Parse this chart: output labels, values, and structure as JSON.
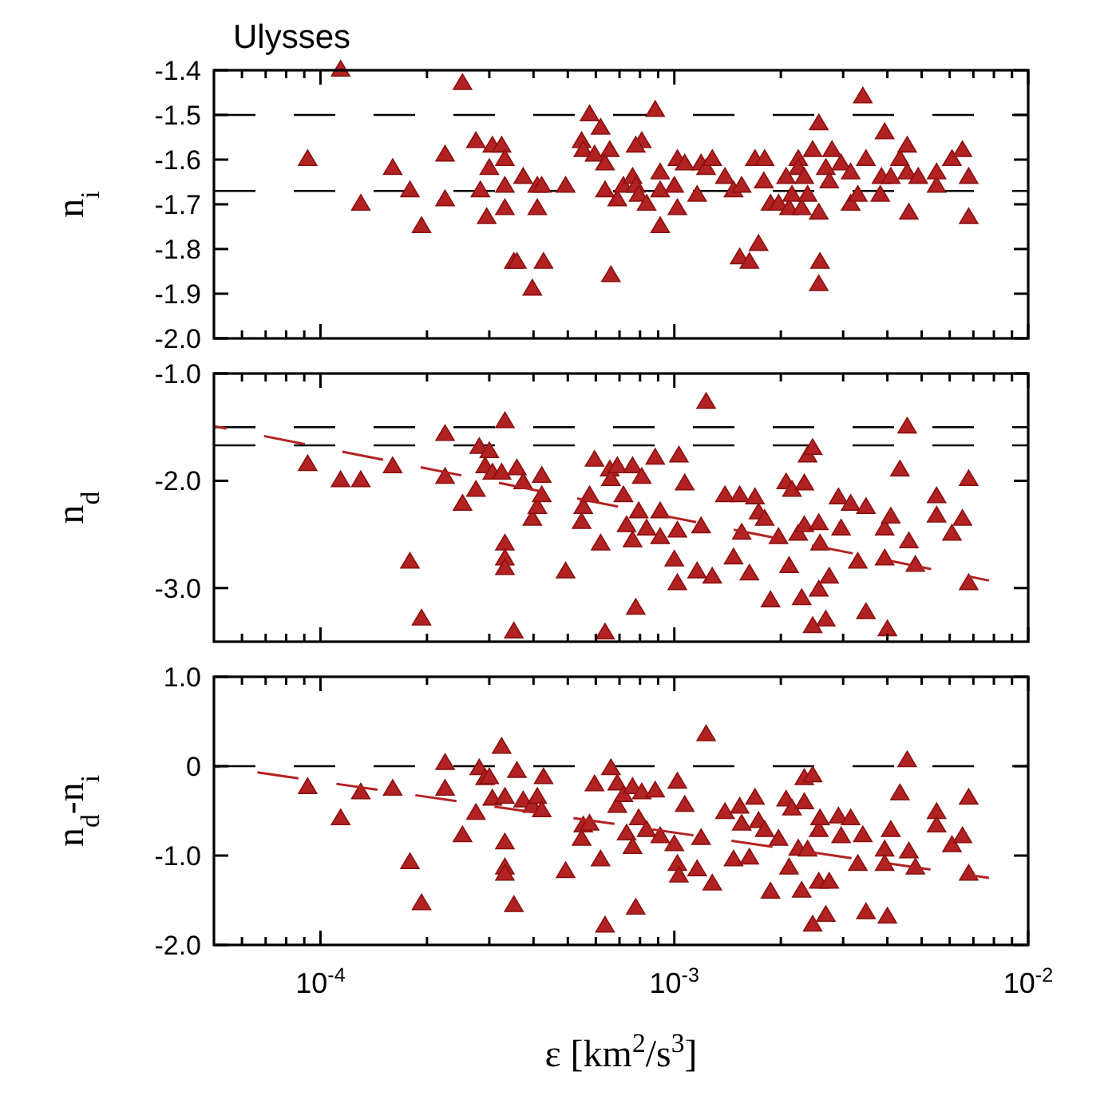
{
  "chart_data": [
    {
      "type": "scatter",
      "title": "Ulysses",
      "ylabel": "n$_{i}$",
      "log": "x",
      "tick_labels": "y",
      "xlim": [
        5e-05,
        0.01
      ],
      "xticks": [
        {
          "value": 6e-05,
          "label": null
        },
        {
          "value": 7e-05,
          "label": null
        },
        {
          "value": 8e-05,
          "label": null
        },
        {
          "value": 9e-05,
          "label": null
        },
        {
          "value": 0.0001,
          "label": null
        },
        {
          "value": 0.0002,
          "label": null
        },
        {
          "value": 0.0003,
          "label": null
        },
        {
          "value": 0.0004,
          "label": null
        },
        {
          "value": 0.0005,
          "label": null
        },
        {
          "value": 0.0006,
          "label": null
        },
        {
          "value": 0.0007,
          "label": null
        },
        {
          "value": 0.0008,
          "label": null
        },
        {
          "value": 0.0009,
          "label": null
        },
        {
          "value": 0.001,
          "label": null
        },
        {
          "value": 0.002,
          "label": null
        },
        {
          "value": 0.003,
          "label": null
        },
        {
          "value": 0.004,
          "label": null
        },
        {
          "value": 0.005,
          "label": null
        },
        {
          "value": 0.006,
          "label": null
        },
        {
          "value": 0.007,
          "label": null
        },
        {
          "value": 0.008,
          "label": null
        },
        {
          "value": 0.009,
          "label": null
        },
        {
          "value": 0.01,
          "label": null
        }
      ],
      "ylim": [
        -2.0,
        -1.4
      ],
      "yticks": [
        {
          "value": -2,
          "label": "-2.0"
        },
        -1.9,
        -1.8,
        -1.7,
        -1.6,
        -1.5,
        -1.4
      ],
      "ref_lines": [
        {
          "axis": "y",
          "value": -1.5,
          "color": "#000000",
          "line_style": "dashed"
        },
        {
          "axis": "y",
          "value": -1.67,
          "color": "#000000",
          "line_style": "dashed"
        }
      ],
      "series": [
        {
          "type": "scatter",
          "color": "#b22222",
          "marker": "triangle",
          "x": [
            9.2e-05,
            0.000114,
            0.00013,
            0.00016,
            0.000179,
            0.000193,
            0.000225,
            0.000225,
            0.000252,
            0.000275,
            0.000283,
            0.0003,
            0.000306,
            0.000325,
            0.000332,
            0.000332,
            0.000332,
            0.000295,
            0.000352,
            0.000359,
            0.000374,
            0.000397,
            0.00041,
            0.000422,
            0.00041,
            0.000427,
            0.000493,
            0.000547,
            0.000553,
            0.000576,
            0.000619,
            0.000595,
            0.000657,
            0.000637,
            0.000637,
            0.000662,
            0.00069,
            0.000718,
            0.000762,
            0.000778,
            0.000793,
            0.000809,
            0.000778,
            0.000835,
            0.000883,
            0.000912,
            0.000912,
            0.000912,
            0.001,
            0.00102,
            0.00102,
            0.00107,
            0.00116,
            0.00119,
            0.00123,
            0.00128,
            0.00139,
            0.00147,
            0.00155,
            0.00153,
            0.00163,
            0.00169,
            0.00173,
            0.0018,
            0.00179,
            0.00187,
            0.00197,
            0.00207,
            0.00211,
            0.00215,
            0.00224,
            0.00224,
            0.00229,
            0.00233,
            0.00238,
            0.00246,
            0.00256,
            0.00256,
            0.00258,
            0.00256,
            0.00268,
            0.00274,
            0.00279,
            0.00296,
            0.00315,
            0.00315,
            0.0033,
            0.00341,
            0.00348,
            0.00382,
            0.00385,
            0.00393,
            0.00409,
            0.00434,
            0.00455,
            0.00455,
            0.0046,
            0.00489,
            0.00551,
            0.00551,
            0.00609,
            0.00652,
            0.00679,
            0.00679
          ],
          "values": [
            -1.6,
            -1.4,
            -1.7,
            -1.62,
            -1.67,
            -1.75,
            -1.69,
            -1.59,
            -1.43,
            -1.56,
            -1.67,
            -1.62,
            -1.57,
            -1.57,
            -1.6,
            -1.66,
            -1.71,
            -1.73,
            -1.83,
            -1.83,
            -1.64,
            -1.89,
            -1.66,
            -1.66,
            -1.71,
            -1.83,
            -1.66,
            -1.56,
            -1.58,
            -1.5,
            -1.53,
            -1.59,
            -1.58,
            -1.61,
            -1.67,
            -1.86,
            -1.69,
            -1.66,
            -1.64,
            -1.66,
            -1.68,
            -1.56,
            -1.57,
            -1.7,
            -1.49,
            -1.63,
            -1.67,
            -1.75,
            -1.66,
            -1.71,
            -1.6,
            -1.61,
            -1.68,
            -1.61,
            -1.62,
            -1.6,
            -1.64,
            -1.67,
            -1.66,
            -1.82,
            -1.83,
            -1.6,
            -1.79,
            -1.6,
            -1.65,
            -1.7,
            -1.7,
            -1.64,
            -1.71,
            -1.68,
            -1.6,
            -1.62,
            -1.71,
            -1.64,
            -1.68,
            -1.58,
            -1.52,
            -1.72,
            -1.83,
            -1.88,
            -1.62,
            -1.65,
            -1.58,
            -1.61,
            -1.7,
            -1.63,
            -1.68,
            -1.46,
            -1.6,
            -1.68,
            -1.64,
            -1.54,
            -1.64,
            -1.6,
            -1.57,
            -1.63,
            -1.72,
            -1.64,
            -1.66,
            -1.63,
            -1.6,
            -1.58,
            -1.64,
            -1.73
          ]
        }
      ]
    },
    {
      "type": "scatter",
      "ylabel": "n$_{d}$",
      "log": "x",
      "tick_labels": "y",
      "xlim": [
        5e-05,
        0.01
      ],
      "xticks": [
        {
          "value": 6e-05,
          "label": null
        },
        {
          "value": 7e-05,
          "label": null
        },
        {
          "value": 8e-05,
          "label": null
        },
        {
          "value": 9e-05,
          "label": null
        },
        {
          "value": 0.0001,
          "label": null
        },
        {
          "value": 0.0002,
          "label": null
        },
        {
          "value": 0.0003,
          "label": null
        },
        {
          "value": 0.0004,
          "label": null
        },
        {
          "value": 0.0005,
          "label": null
        },
        {
          "value": 0.0006,
          "label": null
        },
        {
          "value": 0.0007,
          "label": null
        },
        {
          "value": 0.0008,
          "label": null
        },
        {
          "value": 0.0009,
          "label": null
        },
        {
          "value": 0.001,
          "label": null
        },
        {
          "value": 0.002,
          "label": null
        },
        {
          "value": 0.003,
          "label": null
        },
        {
          "value": 0.004,
          "label": null
        },
        {
          "value": 0.005,
          "label": null
        },
        {
          "value": 0.006,
          "label": null
        },
        {
          "value": 0.007,
          "label": null
        },
        {
          "value": 0.008,
          "label": null
        },
        {
          "value": 0.009,
          "label": null
        },
        {
          "value": 0.01,
          "label": null
        }
      ],
      "ylim": [
        -3.5,
        -1.0
      ],
      "yticks": [
        {
          "value": -3,
          "label": "-3.0"
        },
        {
          "value": -2,
          "label": "-2.0"
        },
        {
          "value": -1,
          "label": "-1.0"
        }
      ],
      "ref_lines": [
        {
          "axis": "y",
          "value": -1.5,
          "color": "#000000",
          "line_style": "dashed"
        },
        {
          "axis": "y",
          "value": -1.67,
          "color": "#000000",
          "line_style": "dashed"
        }
      ],
      "series": [
        {
          "type": "scatter",
          "color": "#b22222",
          "marker": "triangle",
          "x": [
            9.2e-05,
            0.000114,
            0.00013,
            0.00016,
            0.000179,
            0.000193,
            0.000225,
            0.000225,
            0.000252,
            0.000275,
            0.000281,
            0.000292,
            0.0003,
            0.000306,
            0.000332,
            0.000332,
            0.000332,
            0.000332,
            0.000325,
            0.000352,
            0.000359,
            0.000374,
            0.000397,
            0.00041,
            0.000422,
            0.000422,
            0.000493,
            0.000547,
            0.000553,
            0.000576,
            0.000595,
            0.000619,
            0.000637,
            0.000657,
            0.000662,
            0.00069,
            0.000718,
            0.000733,
            0.000762,
            0.000762,
            0.000778,
            0.000793,
            0.000809,
            0.000835,
            0.000883,
            0.000912,
            0.000912,
            0.001,
            0.00102,
            0.00102,
            0.00103,
            0.00107,
            0.00116,
            0.00119,
            0.00128,
            0.00139,
            0.00147,
            0.00153,
            0.00155,
            0.00163,
            0.00169,
            0.00173,
            0.0018,
            0.00187,
            0.00197,
            0.00207,
            0.00211,
            0.00215,
            0.00224,
            0.00229,
            0.00233,
            0.00233,
            0.00238,
            0.00246,
            0.00246,
            0.00256,
            0.00258,
            0.00256,
            0.00268,
            0.00274,
            0.00291,
            0.00296,
            0.00315,
            0.0033,
            0.00348,
            0.00348,
            0.00393,
            0.00393,
            0.004,
            0.00409,
            0.00434,
            0.00455,
            0.0046,
            0.0048,
            0.00551,
            0.00551,
            0.00609,
            0.00652,
            0.00679,
            0.00679,
            0.00123
          ],
          "values": [
            -1.85,
            -2.0,
            -2.0,
            -1.87,
            -2.76,
            -3.29,
            -1.97,
            -1.57,
            -2.22,
            -2.09,
            -1.69,
            -1.87,
            -1.73,
            -1.93,
            -1.45,
            -2.59,
            -2.73,
            -2.82,
            -1.93,
            -3.41,
            -1.89,
            -2.02,
            -2.36,
            -2.25,
            -1.96,
            -2.14,
            -2.85,
            -2.39,
            -2.25,
            -2.14,
            -1.81,
            -2.59,
            -3.42,
            -1.9,
            -1.99,
            -1.87,
            -2.14,
            -2.42,
            -1.87,
            -2.56,
            -3.19,
            -2.29,
            -1.97,
            -2.45,
            -1.79,
            -2.29,
            -2.53,
            -2.74,
            -2.96,
            -2.47,
            -1.77,
            -2.03,
            -2.85,
            -2.43,
            -2.9,
            -2.14,
            -2.72,
            -2.14,
            -2.49,
            -2.87,
            -2.16,
            -2.3,
            -2.36,
            -3.12,
            -2.53,
            -2.02,
            -2.8,
            -2.09,
            -2.5,
            -3.1,
            -2.03,
            -2.42,
            -1.77,
            -1.7,
            -3.36,
            -2.4,
            -2.59,
            -3.02,
            -3.3,
            -2.9,
            -2.16,
            -2.45,
            -2.22,
            -2.76,
            -2.25,
            -3.23,
            -2.45,
            -2.73,
            -3.39,
            -2.34,
            -1.9,
            -1.5,
            -2.57,
            -2.79,
            -2.15,
            -2.33,
            -2.5,
            -2.36,
            -1.99,
            -2.96,
            -1.27
          ]
        },
        {
          "type": "line",
          "color": "#b22222",
          "line_style": "dashed",
          "marker": "none",
          "x": [
            5e-05,
            0.00775
          ],
          "values": [
            -1.49,
            -2.93
          ]
        }
      ]
    },
    {
      "type": "scatter",
      "ylabel": "n$_{d}$-n$_{i}$",
      "xlabel": "ε [km$^{2}$/s$^{3}$]",
      "log": "x",
      "xlim": [
        5e-05,
        0.01
      ],
      "xticks": [
        {
          "value": 6e-05,
          "label": null
        },
        {
          "value": 7e-05,
          "label": null
        },
        {
          "value": 8e-05,
          "label": null
        },
        {
          "value": 9e-05,
          "label": null
        },
        {
          "value": 0.0001,
          "label": "10$^{-4}$"
        },
        {
          "value": 0.0002,
          "label": null
        },
        {
          "value": 0.0003,
          "label": null
        },
        {
          "value": 0.0004,
          "label": null
        },
        {
          "value": 0.0005,
          "label": null
        },
        {
          "value": 0.0006,
          "label": null
        },
        {
          "value": 0.0007,
          "label": null
        },
        {
          "value": 0.0008,
          "label": null
        },
        {
          "value": 0.0009,
          "label": null
        },
        {
          "value": 0.001,
          "label": "10$^{-3}$"
        },
        {
          "value": 0.002,
          "label": null
        },
        {
          "value": 0.003,
          "label": null
        },
        {
          "value": 0.004,
          "label": null
        },
        {
          "value": 0.005,
          "label": null
        },
        {
          "value": 0.006,
          "label": null
        },
        {
          "value": 0.007,
          "label": null
        },
        {
          "value": 0.008,
          "label": null
        },
        {
          "value": 0.009,
          "label": null
        },
        {
          "value": 0.01,
          "label": "10$^{-2}$"
        }
      ],
      "ylim": [
        -2.0,
        1.0
      ],
      "yticks": [
        {
          "value": -2,
          "label": "-2.0"
        },
        {
          "value": -1,
          "label": "-1.0"
        },
        0,
        {
          "value": 1,
          "label": "1.0"
        }
      ],
      "ref_lines": [
        {
          "axis": "y",
          "value": 0,
          "color": "#000000",
          "line_style": "dashed"
        }
      ],
      "series": [
        {
          "type": "scatter",
          "color": "#b22222",
          "marker": "triangle",
          "x": [
            9.2e-05,
            0.000114,
            0.00013,
            0.00016,
            0.000179,
            0.000193,
            0.000225,
            0.000225,
            0.000252,
            0.000275,
            0.000281,
            0.000292,
            0.0003,
            0.000306,
            0.000325,
            0.000332,
            0.000332,
            0.000332,
            0.000332,
            0.000352,
            0.000359,
            0.000374,
            0.000397,
            0.00041,
            0.000422,
            0.000427,
            0.000493,
            0.000547,
            0.000553,
            0.000576,
            0.000595,
            0.000619,
            0.000637,
            0.000662,
            0.00069,
            0.00069,
            0.000718,
            0.000733,
            0.000762,
            0.000762,
            0.000778,
            0.000793,
            0.000809,
            0.000835,
            0.000883,
            0.000912,
            0.001,
            0.00102,
            0.00102,
            0.00103,
            0.00107,
            0.00116,
            0.00119,
            0.00128,
            0.00139,
            0.00147,
            0.00153,
            0.00155,
            0.00163,
            0.00169,
            0.00173,
            0.0018,
            0.00187,
            0.00197,
            0.00207,
            0.00211,
            0.00215,
            0.00224,
            0.00229,
            0.00233,
            0.00233,
            0.00238,
            0.00246,
            0.00246,
            0.00256,
            0.00256,
            0.00258,
            0.00268,
            0.00274,
            0.00291,
            0.00296,
            0.00315,
            0.0033,
            0.00341,
            0.00348,
            0.00393,
            0.00393,
            0.004,
            0.00409,
            0.00434,
            0.00455,
            0.0046,
            0.0048,
            0.00551,
            0.00551,
            0.00609,
            0.00652,
            0.00679,
            0.00679,
            0.00123
          ],
          "values": [
            -0.24,
            -0.59,
            -0.3,
            -0.26,
            -1.08,
            -1.54,
            -0.26,
            0.03,
            -0.78,
            -0.53,
            -0.03,
            -0.14,
            -0.13,
            -0.37,
            0.21,
            -0.35,
            -0.86,
            -1.14,
            -1.21,
            -1.56,
            -0.06,
            -0.39,
            -0.45,
            -0.35,
            -0.5,
            -0.13,
            -1.18,
            -0.82,
            -0.67,
            -0.65,
            -0.21,
            -1.05,
            -1.79,
            -0.03,
            -0.2,
            -0.45,
            -0.33,
            -0.76,
            -0.24,
            -0.91,
            -1.59,
            -0.59,
            -0.3,
            -0.72,
            -0.28,
            -0.79,
            -0.88,
            -1.1,
            -0.18,
            -1.23,
            -0.44,
            -1.16,
            -0.81,
            -1.32,
            -0.52,
            -1.05,
            -0.46,
            -0.65,
            -1.03,
            -0.36,
            -0.62,
            -0.72,
            -1.41,
            -0.82,
            -0.38,
            -1.14,
            -0.48,
            -0.93,
            -1.4,
            -0.14,
            -0.41,
            -0.94,
            -0.11,
            -1.78,
            -0.72,
            -1.3,
            -0.59,
            -1.67,
            -1.3,
            -0.57,
            -0.79,
            -0.59,
            -1.1,
            -0.78,
            -1.64,
            -0.94,
            -1.1,
            -1.69,
            -0.72,
            -0.31,
            0.06,
            -0.96,
            -1.14,
            -0.52,
            -0.67,
            -0.89,
            -0.79,
            -0.36,
            -1.21,
            0.35
          ]
        },
        {
          "type": "line",
          "color": "#b22222",
          "line_style": "dashed",
          "marker": "none",
          "x": [
            5e-05,
            0.00775
          ],
          "values": [
            0,
            -1.25
          ]
        }
      ]
    }
  ]
}
